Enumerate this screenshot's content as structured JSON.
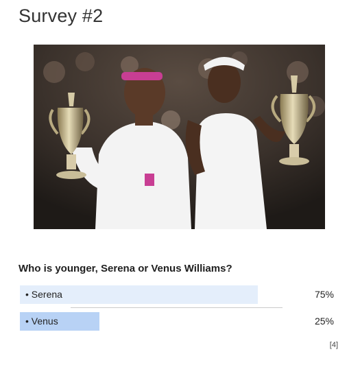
{
  "survey": {
    "title": "Survey #2",
    "question": "Who is younger, Serena or Venus Williams?",
    "options": [
      {
        "label": "• Serena",
        "percent_text": "75%",
        "share": 0.75
      },
      {
        "label": "• Venus",
        "percent_text": "25%",
        "share": 0.25
      }
    ],
    "footnote": "[4]"
  },
  "colors": {
    "bar_serena": "#e4eefb",
    "bar_venus": "#b8d2f5"
  }
}
